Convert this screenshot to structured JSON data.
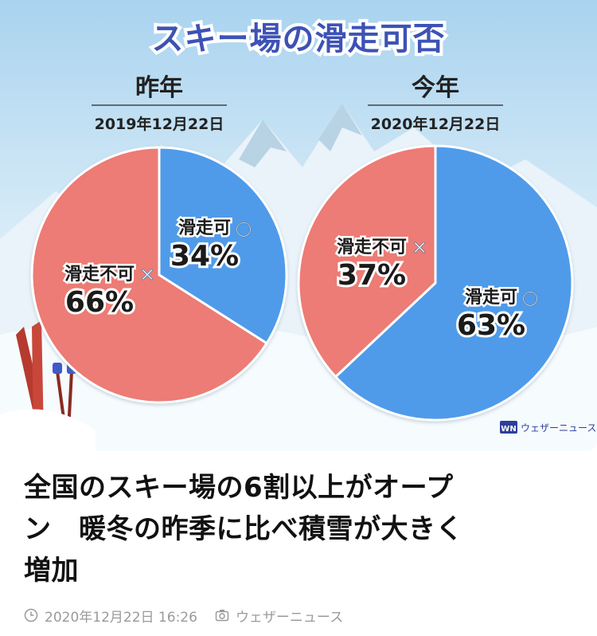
{
  "infographic": {
    "title": "スキー場の滑走可否",
    "brand": "ウェザーニュース",
    "brand_logo_text": "WN",
    "colors": {
      "can_ski": "#4f9bea",
      "cannot_ski": "#ec7b74",
      "title_fill": "#3d52b5",
      "sky": "#cfe5f3"
    }
  },
  "chart_data": [
    {
      "type": "pie",
      "title": "昨年",
      "subtitle": "2019年12月22日",
      "slices": [
        {
          "label": "滑走可",
          "mark": "○",
          "value": 34,
          "value_label": "34%",
          "color": "#4f9bea"
        },
        {
          "label": "滑走不可",
          "mark": "×",
          "value": 66,
          "value_label": "66%",
          "color": "#ec7b74"
        }
      ]
    },
    {
      "type": "pie",
      "title": "今年",
      "subtitle": "2020年12月22日",
      "slices": [
        {
          "label": "滑走可",
          "mark": "○",
          "value": 63,
          "value_label": "63%",
          "color": "#4f9bea"
        },
        {
          "label": "滑走不可",
          "mark": "×",
          "value": 37,
          "value_label": "37%",
          "color": "#ec7b74"
        }
      ]
    }
  ],
  "article": {
    "headline_lines": [
      "全国のスキー場の6割以上がオープ",
      "ン　暖冬の昨季に比べ積雪が大きく",
      "増加"
    ],
    "date": "2020年12月22日 16:26",
    "source": "ウェザーニュース",
    "date_icon": "clock-icon",
    "source_icon": "camera-icon"
  }
}
